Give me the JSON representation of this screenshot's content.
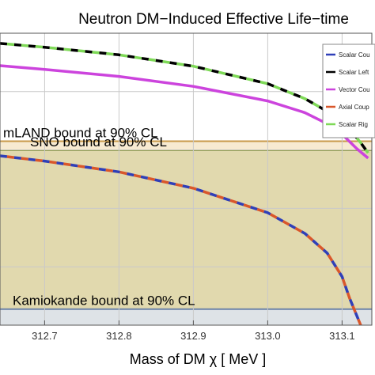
{
  "chart_data": {
    "type": "line",
    "title": "Neutron DM−Induced Effective Life−time",
    "xlabel": "Mass of DM χ [ MeV ]",
    "ylabel": "",
    "xlim": [
      312.64,
      313.14
    ],
    "ylim": [
      0,
      1
    ],
    "x_ticks": [
      "312.7",
      "312.8",
      "312.9",
      "313.0",
      "313.1"
    ],
    "x_tick_values": [
      312.7,
      312.8,
      312.9,
      313.0,
      313.1
    ],
    "grid": true,
    "legend_position": "top-right",
    "series": [
      {
        "name": "Scalar Cou",
        "color": "#2f3fb8",
        "dash": "blue-red",
        "x": [
          312.64,
          312.7,
          312.8,
          312.9,
          313.0,
          313.05,
          313.08,
          313.1,
          313.11,
          313.125
        ],
        "y": [
          0.58,
          0.562,
          0.525,
          0.469,
          0.385,
          0.314,
          0.247,
          0.166,
          0.093,
          0.0
        ]
      },
      {
        "name": "Scalar Left",
        "color": "#000000",
        "dash": "black-green",
        "x": [
          312.64,
          312.7,
          312.8,
          312.9,
          313.0,
          313.05,
          313.09,
          313.11,
          313.125,
          313.135
        ],
        "y": [
          0.965,
          0.952,
          0.926,
          0.887,
          0.827,
          0.776,
          0.718,
          0.671,
          0.625,
          0.59
        ]
      },
      {
        "name": "Vector Cou",
        "color": "#cc44dd",
        "dash": "solid",
        "x": [
          312.64,
          312.7,
          312.8,
          312.9,
          313.0,
          313.05,
          313.08,
          313.1,
          313.12,
          313.135
        ],
        "y": [
          0.889,
          0.876,
          0.852,
          0.818,
          0.768,
          0.728,
          0.69,
          0.654,
          0.604,
          0.572
        ]
      },
      {
        "name": "Axial Coup",
        "color": "#d9572b",
        "dash": "red-blue",
        "x": [
          312.64,
          312.7,
          312.8,
          312.9,
          313.0,
          313.05,
          313.08,
          313.1,
          313.11,
          313.125
        ],
        "y": [
          0.58,
          0.562,
          0.525,
          0.469,
          0.385,
          0.314,
          0.247,
          0.166,
          0.093,
          0.0
        ]
      },
      {
        "name": "Scalar Rig",
        "color": "#7ed957",
        "dash": "green-black",
        "x": [
          312.64,
          312.7,
          312.8,
          312.9,
          313.0,
          313.05,
          313.09,
          313.11,
          313.125,
          313.135
        ],
        "y": [
          0.965,
          0.952,
          0.926,
          0.887,
          0.827,
          0.776,
          0.718,
          0.671,
          0.625,
          0.59
        ]
      }
    ],
    "bands": [
      {
        "label": "mLAND bound at 90% CL",
        "y_top": 0.63,
        "y_bottom": 0.0,
        "fill": "#f6e6c9",
        "line": "#c89a4a"
      },
      {
        "label": "SNO bound at 90% CL",
        "y_top": 0.599,
        "y_bottom": 0.0,
        "fill": "#ddd6a8",
        "line": "#8e9a3e"
      },
      {
        "label": "Kamiokande bound at 90% CL",
        "y_top": 0.055,
        "y_bottom": 0.0,
        "fill": "#dde4f1",
        "line": "#6c83a8"
      }
    ]
  }
}
